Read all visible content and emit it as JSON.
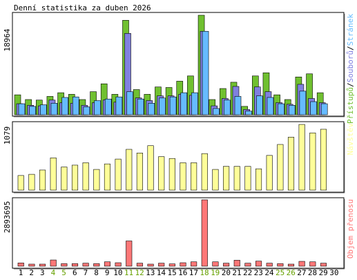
{
  "title": "Denní statistika za duben 2026",
  "colors": {
    "hits": "#70C030",
    "files": "#8080E0",
    "pages": "#66BBFF",
    "visits": "#FFFF99",
    "kbytes": "#FF7777",
    "weekend": "#66A000",
    "text": "#000000",
    "bar_outline": "#000000"
  },
  "chart_data": [
    {
      "type": "bar",
      "title": "Denní statistika za duben 2026",
      "ytick_max_label": "18964",
      "ylim": [
        0,
        18964
      ],
      "legend": [
        {
          "label": "Přístupů",
          "color": "#70C030"
        },
        {
          "label": "/",
          "color": "#000000"
        },
        {
          "label": "Souborů",
          "color": "#8080E0"
        },
        {
          "label": "/",
          "color": "#000000"
        },
        {
          "label": "Stránek",
          "color": "#66BBFF"
        }
      ],
      "categories": [
        "1",
        "2",
        "3",
        "4",
        "5",
        "6",
        "7",
        "8",
        "9",
        "10",
        "11",
        "12",
        "13",
        "14",
        "15",
        "16",
        "17",
        "18",
        "19",
        "20",
        "21",
        "22",
        "23",
        "24",
        "25",
        "26",
        "27",
        "28",
        "29",
        "30"
      ],
      "series": [
        {
          "name": "Přístupů",
          "values": [
            3800,
            2900,
            2800,
            3500,
            4200,
            3900,
            2900,
            4400,
            5900,
            3900,
            18000,
            4800,
            3900,
            5300,
            5200,
            6400,
            7400,
            18964,
            2900,
            5000,
            6200,
            1600,
            7400,
            8000,
            3800,
            2900,
            7200,
            7800,
            4200,
            0
          ]
        },
        {
          "name": "Souborů",
          "values": [
            2100,
            1800,
            1700,
            2800,
            2300,
            2200,
            1800,
            2300,
            2800,
            2400,
            15500,
            3200,
            2700,
            3600,
            3600,
            3900,
            3700,
            15900,
            1700,
            3100,
            5400,
            1000,
            5300,
            4400,
            2300,
            2000,
            5800,
            3100,
            2300,
            0
          ]
        },
        {
          "name": "Stránek",
          "values": [
            2100,
            1600,
            1900,
            2200,
            3300,
            3400,
            1500,
            2700,
            3000,
            3400,
            4400,
            3000,
            2200,
            3200,
            3400,
            4200,
            4200,
            15900,
            1200,
            2800,
            3500,
            700,
            3600,
            3300,
            2100,
            1800,
            4500,
            2500,
            2100,
            0
          ]
        }
      ]
    },
    {
      "type": "bar",
      "ytick_max_label": "1079",
      "ylim": [
        0,
        1079
      ],
      "legend": [
        {
          "label": "Návštěv",
          "color": "#FFFF99"
        }
      ],
      "categories": [
        "1",
        "2",
        "3",
        "4",
        "5",
        "6",
        "7",
        "8",
        "9",
        "10",
        "11",
        "12",
        "13",
        "14",
        "15",
        "16",
        "17",
        "18",
        "19",
        "20",
        "21",
        "22",
        "23",
        "24",
        "25",
        "26",
        "27",
        "28",
        "29",
        "30"
      ],
      "series": [
        {
          "name": "Návštěv",
          "values": [
            240,
            260,
            330,
            530,
            380,
            410,
            450,
            340,
            430,
            510,
            670,
            610,
            730,
            550,
            520,
            450,
            450,
            600,
            340,
            390,
            390,
            390,
            350,
            570,
            750,
            870,
            1079,
            940,
            1000,
            0
          ]
        }
      ]
    },
    {
      "type": "bar",
      "ytick_max_label": "2893695",
      "ylim": [
        0,
        2893695
      ],
      "legend": [
        {
          "label": "Objem přenosu",
          "color": "#FF7777"
        }
      ],
      "categories": [
        "1",
        "2",
        "3",
        "4",
        "5",
        "6",
        "7",
        "8",
        "9",
        "10",
        "11",
        "12",
        "13",
        "14",
        "15",
        "16",
        "17",
        "18",
        "19",
        "20",
        "21",
        "22",
        "23",
        "24",
        "25",
        "26",
        "27",
        "28",
        "29",
        "30"
      ],
      "series": [
        {
          "name": "Objem přenosu",
          "values": [
            140000,
            90000,
            90000,
            270000,
            110000,
            110000,
            130000,
            110000,
            190000,
            150000,
            1100000,
            130000,
            90000,
            130000,
            100000,
            150000,
            190000,
            2893695,
            190000,
            130000,
            260000,
            130000,
            220000,
            130000,
            110000,
            90000,
            210000,
            190000,
            130000,
            0
          ]
        }
      ]
    }
  ],
  "days": [
    {
      "label": "1",
      "weekend": false
    },
    {
      "label": "2",
      "weekend": false
    },
    {
      "label": "3",
      "weekend": false
    },
    {
      "label": "4",
      "weekend": true
    },
    {
      "label": "5",
      "weekend": true
    },
    {
      "label": "6",
      "weekend": false
    },
    {
      "label": "7",
      "weekend": false
    },
    {
      "label": "8",
      "weekend": false
    },
    {
      "label": "9",
      "weekend": false
    },
    {
      "label": "10",
      "weekend": false
    },
    {
      "label": "11",
      "weekend": true
    },
    {
      "label": "12",
      "weekend": true
    },
    {
      "label": "13",
      "weekend": false
    },
    {
      "label": "14",
      "weekend": false
    },
    {
      "label": "15",
      "weekend": false
    },
    {
      "label": "16",
      "weekend": false
    },
    {
      "label": "17",
      "weekend": false
    },
    {
      "label": "18",
      "weekend": true
    },
    {
      "label": "19",
      "weekend": true
    },
    {
      "label": "20",
      "weekend": false
    },
    {
      "label": "21",
      "weekend": false
    },
    {
      "label": "22",
      "weekend": false
    },
    {
      "label": "23",
      "weekend": false
    },
    {
      "label": "24",
      "weekend": false
    },
    {
      "label": "25",
      "weekend": true
    },
    {
      "label": "26",
      "weekend": true
    },
    {
      "label": "27",
      "weekend": false
    },
    {
      "label": "28",
      "weekend": false
    },
    {
      "label": "29",
      "weekend": false
    },
    {
      "label": "30",
      "weekend": false
    }
  ]
}
